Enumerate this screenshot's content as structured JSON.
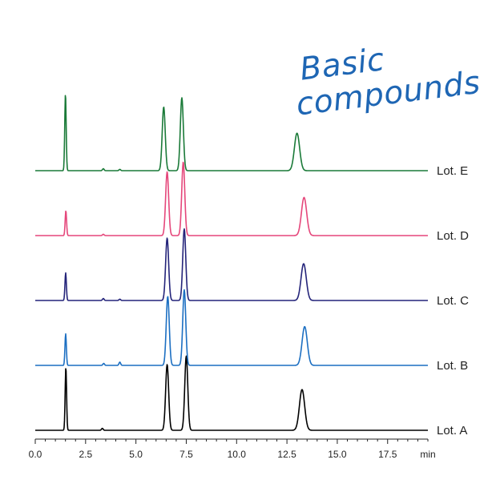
{
  "annotation": {
    "line1": "Basic",
    "line2": "compounds"
  },
  "chart_data": {
    "type": "line",
    "title": "",
    "xlabel": "",
    "ylabel": "",
    "x_unit": "min",
    "xlim": [
      0,
      19.5
    ],
    "x_ticks": [
      "0.0",
      "2.5",
      "5.0",
      "7.5",
      "10.0",
      "12.5",
      "15.0",
      "17.5"
    ],
    "y_axis_shown": false,
    "grid": false,
    "series": [
      {
        "name": "Lot. A",
        "color": "#000000",
        "peaks": [
          {
            "rt": 1.52,
            "height": 0.96
          },
          {
            "rt": 3.33,
            "height": 0.03
          },
          {
            "rt": 6.55,
            "height": 1.0
          },
          {
            "rt": 7.5,
            "height": 1.13
          },
          {
            "rt": 13.25,
            "height": 0.62
          }
        ]
      },
      {
        "name": "Lot. B",
        "color": "#1c6fc2",
        "peaks": [
          {
            "rt": 1.51,
            "height": 0.48
          },
          {
            "rt": 3.4,
            "height": 0.03
          },
          {
            "rt": 4.2,
            "height": 0.05
          },
          {
            "rt": 6.58,
            "height": 1.05
          },
          {
            "rt": 7.4,
            "height": 1.15
          },
          {
            "rt": 13.38,
            "height": 0.59
          }
        ]
      },
      {
        "name": "Lot. C",
        "color": "#24247a",
        "peaks": [
          {
            "rt": 1.51,
            "height": 0.42
          },
          {
            "rt": 3.38,
            "height": 0.03
          },
          {
            "rt": 4.2,
            "height": 0.02
          },
          {
            "rt": 6.55,
            "height": 0.95
          },
          {
            "rt": 7.4,
            "height": 1.09
          },
          {
            "rt": 13.33,
            "height": 0.56
          }
        ]
      },
      {
        "name": "Lot. D",
        "color": "#e5477b",
        "peaks": [
          {
            "rt": 1.52,
            "height": 0.38
          },
          {
            "rt": 3.38,
            "height": 0.02
          },
          {
            "rt": 6.55,
            "height": 0.97
          },
          {
            "rt": 7.35,
            "height": 1.12
          },
          {
            "rt": 13.35,
            "height": 0.58
          }
        ]
      },
      {
        "name": "Lot. E",
        "color": "#1a7a38",
        "peaks": [
          {
            "rt": 1.5,
            "height": 1.17
          },
          {
            "rt": 3.38,
            "height": 0.03
          },
          {
            "rt": 4.2,
            "height": 0.02
          },
          {
            "rt": 6.38,
            "height": 0.97
          },
          {
            "rt": 7.28,
            "height": 1.11
          },
          {
            "rt": 13.0,
            "height": 0.57
          }
        ]
      }
    ]
  }
}
